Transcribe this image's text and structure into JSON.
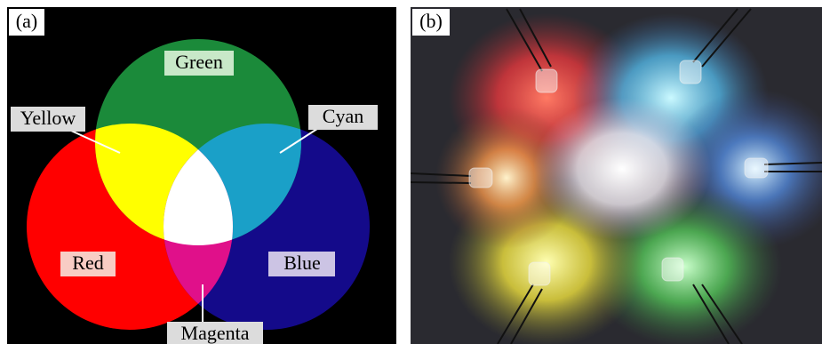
{
  "panels": [
    {
      "tag": "(a)",
      "labels": [
        "Green",
        "Yellow",
        "Cyan",
        "Red",
        "Blue",
        "Magenta"
      ]
    },
    {
      "tag": "(b)"
    }
  ]
}
